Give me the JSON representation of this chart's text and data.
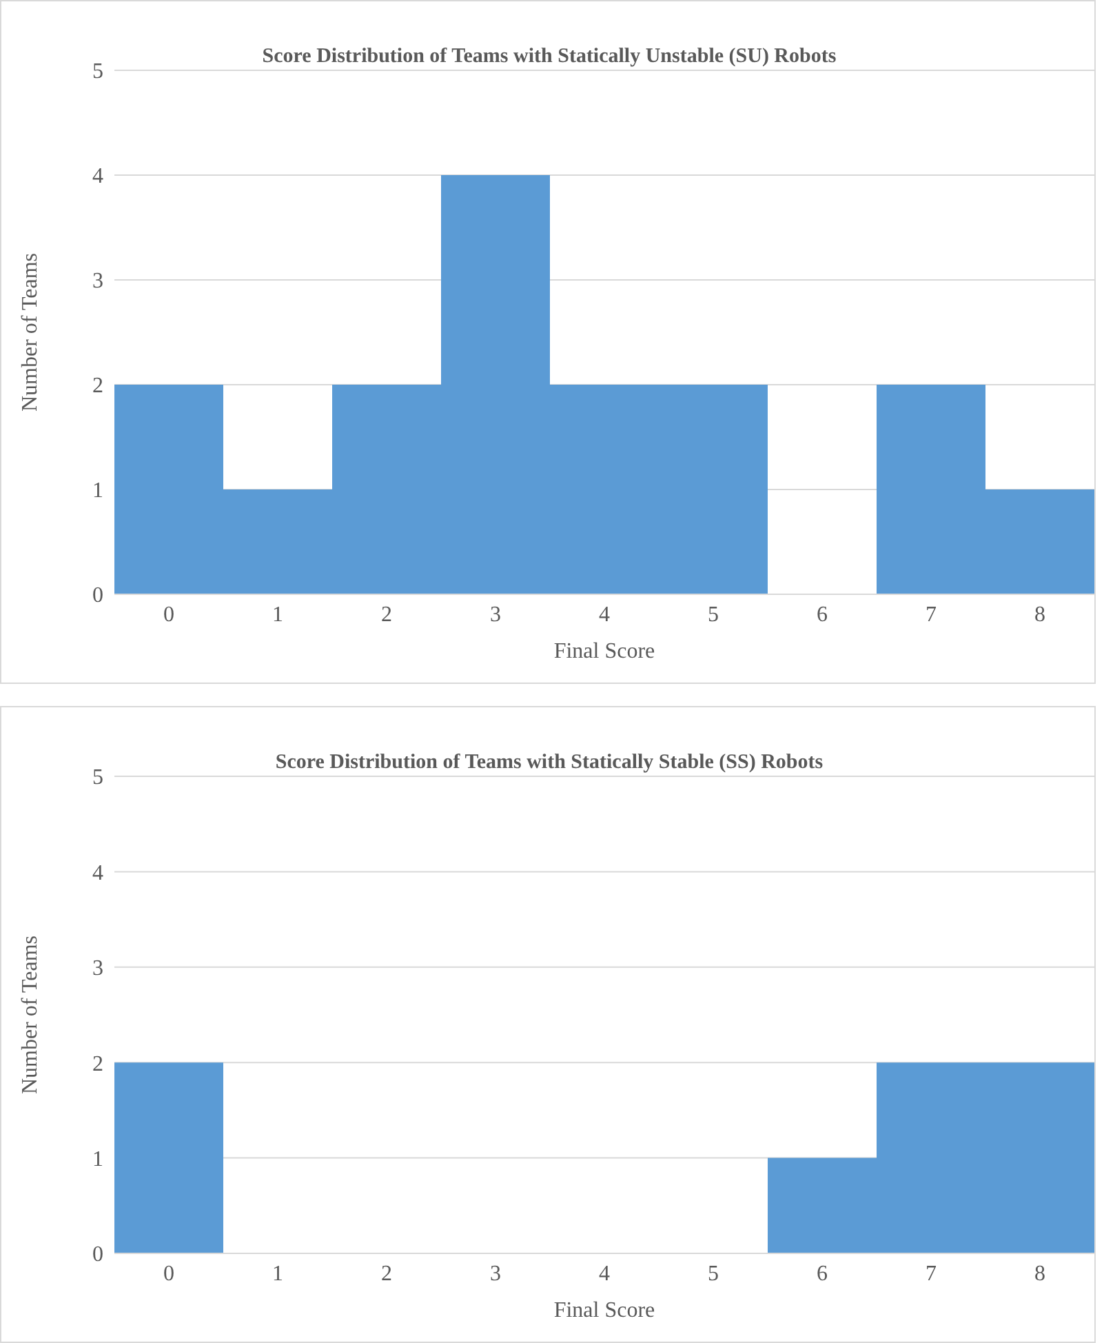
{
  "chart_data": [
    {
      "type": "bar",
      "title": "Score Distribution of Teams with Statically Unstable (SU) Robots",
      "xlabel": "Final Score",
      "ylabel": "Number of Teams",
      "categories": [
        "0",
        "1",
        "2",
        "3",
        "4",
        "5",
        "6",
        "7",
        "8"
      ],
      "values": [
        2,
        1,
        2,
        4,
        2,
        2,
        0,
        2,
        1
      ],
      "color": "#5b9bd5",
      "ylim": [
        0,
        5
      ],
      "yticks": [
        0,
        1,
        2,
        3,
        4,
        5
      ],
      "grid": "y",
      "legend": false
    },
    {
      "type": "bar",
      "title": "Score Distribution of Teams with Statically Stable (SS) Robots",
      "xlabel": "Final Score",
      "ylabel": "Number of Teams",
      "categories": [
        "0",
        "1",
        "2",
        "3",
        "4",
        "5",
        "6",
        "7",
        "8"
      ],
      "values": [
        2,
        0,
        0,
        0,
        0,
        0,
        1,
        2,
        2
      ],
      "color": "#5b9bd5",
      "ylim": [
        0,
        5
      ],
      "yticks": [
        0,
        1,
        2,
        3,
        4,
        5
      ],
      "grid": "y",
      "legend": false
    }
  ]
}
